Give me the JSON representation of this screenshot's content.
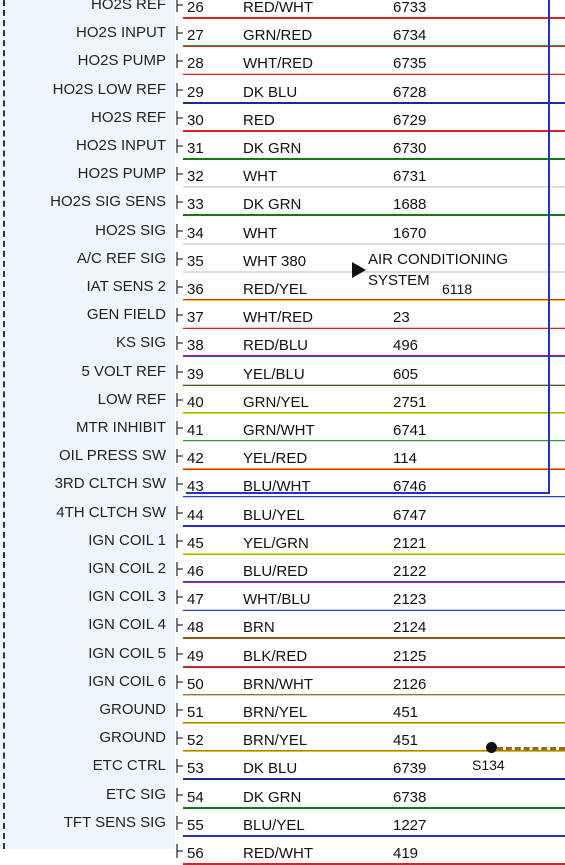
{
  "rows": [
    {
      "label": "HO2S REF",
      "pin": "26",
      "color": "RED/WHT",
      "circuit": "6733",
      "c1": "#e02020",
      "c2": "#e02020"
    },
    {
      "label": "HO2S INPUT",
      "pin": "27",
      "color": "GRN/RED",
      "circuit": "6734",
      "c1": "#2aa02a",
      "c2": "#e02020"
    },
    {
      "label": "HO2S PUMP",
      "pin": "28",
      "color": "WHT/RED",
      "circuit": "6735",
      "c1": "#f3c4c4",
      "c2": "#e02020"
    },
    {
      "label": "HO2S LOW REF",
      "pin": "29",
      "color": "DK BLU",
      "circuit": "6728",
      "c1": "#1b2b8f",
      "c2": "#1b2b8f"
    },
    {
      "label": "HO2S REF",
      "pin": "30",
      "color": "RED",
      "circuit": "6729",
      "c1": "#e02020",
      "c2": "#e02020"
    },
    {
      "label": "HO2S INPUT",
      "pin": "31",
      "color": "DK GRN",
      "circuit": "6730",
      "c1": "#137a13",
      "c2": "#137a13"
    },
    {
      "label": "HO2S PUMP",
      "pin": "32",
      "color": "WHT",
      "circuit": "6731",
      "c1": "#dddddd",
      "c2": "#dddddd"
    },
    {
      "label": "HO2S SIG SENS",
      "pin": "33",
      "color": "DK GRN",
      "circuit": "1688",
      "c1": "#137a13",
      "c2": "#137a13"
    },
    {
      "label": "HO2S SIG",
      "pin": "34",
      "color": "WHT",
      "circuit": "1670",
      "c1": "#dddddd",
      "c2": "#dddddd"
    },
    {
      "label": "A/C REF SIG",
      "pin": "35",
      "color": "WHT  380",
      "circuit": "",
      "c1": "#dddddd",
      "c2": "#dddddd"
    },
    {
      "label": "IAT SENS 2",
      "pin": "36",
      "color": "RED/YEL",
      "circuit": "",
      "c1": "#e02020",
      "c2": "#f2d100"
    },
    {
      "label": "GEN FIELD",
      "pin": "37",
      "color": "WHT/RED",
      "circuit": "23",
      "c1": "#f3c4c4",
      "c2": "#e02020"
    },
    {
      "label": "KS SIG",
      "pin": "38",
      "color": "RED/BLU",
      "circuit": "496",
      "c1": "#c01890",
      "c2": "#3040d0"
    },
    {
      "label": "5 VOLT REF",
      "pin": "39",
      "color": "YEL/BLU",
      "circuit": "605",
      "c1": "#f2d100",
      "c2": "#3040d0"
    },
    {
      "label": "LOW REF",
      "pin": "40",
      "color": "GRN/YEL",
      "circuit": "2751",
      "c1": "#7cc428",
      "c2": "#f2d100"
    },
    {
      "label": "MTR INHIBIT",
      "pin": "41",
      "color": "GRN/WHT",
      "circuit": "6741",
      "c1": "#2aa02a",
      "c2": "#cfe8cf"
    },
    {
      "label": "OIL PRESS SW",
      "pin": "42",
      "color": "YEL/RED",
      "circuit": "114",
      "c1": "#f2a000",
      "c2": "#e02020"
    },
    {
      "label": "3RD CLTCH SW",
      "pin": "43",
      "color": "BLU/WHT",
      "circuit": "6746",
      "c1": "#2a40d0",
      "c2": "#c8cff5"
    },
    {
      "label": "4TH CLTCH SW",
      "pin": "44",
      "color": "BLU/YEL",
      "circuit": "6747",
      "c1": "#1f2fd6",
      "c2": "#1f2fd6"
    },
    {
      "label": "IGN COIL 1",
      "pin": "45",
      "color": "YEL/GRN",
      "circuit": "2121",
      "c1": "#e4e400",
      "c2": "#7cc428"
    },
    {
      "label": "IGN COIL 2",
      "pin": "46",
      "color": "BLU/RED",
      "circuit": "2122",
      "c1": "#3040d0",
      "c2": "#c01890"
    },
    {
      "label": "IGN COIL 3",
      "pin": "47",
      "color": "WHT/BLU",
      "circuit": "2123",
      "c1": "#c8cff5",
      "c2": "#3040d0"
    },
    {
      "label": "IGN COIL 4",
      "pin": "48",
      "color": "BRN",
      "circuit": "2124",
      "c1": "#8b5a14",
      "c2": "#8b5a14"
    },
    {
      "label": "IGN COIL 5",
      "pin": "49",
      "color": "BLK/RED",
      "circuit": "2125",
      "c1": "#b03030",
      "c2": "#e02020"
    },
    {
      "label": "IGN COIL 6",
      "pin": "50",
      "color": "BRN/WHT",
      "circuit": "2126",
      "c1": "#a4703a",
      "c2": "#e0c8a8"
    },
    {
      "label": "GROUND",
      "pin": "51",
      "color": "BRN/YEL",
      "circuit": "451",
      "c1": "#a08020",
      "c2": "#e2c000"
    },
    {
      "label": "GROUND",
      "pin": "52",
      "color": "BRN/YEL",
      "circuit": "451",
      "c1": "#a08020",
      "c2": "#e2c000"
    },
    {
      "label": "ETC CTRL",
      "pin": "53",
      "color": "DK BLU",
      "circuit": "6739",
      "c1": "#1b2b8f",
      "c2": "#1b2b8f"
    },
    {
      "label": "ETC SIG",
      "pin": "54",
      "color": "DK GRN",
      "circuit": "6738",
      "c1": "#137a13",
      "c2": "#137a13"
    },
    {
      "label": "TFT SENS SIG",
      "pin": "55",
      "color": "BLU/YEL",
      "circuit": "1227",
      "c1": "#1f2fd6",
      "c2": "#1f2fd6"
    },
    {
      "label": "",
      "pin": "56",
      "color": "RED/WHT",
      "circuit": "419",
      "c1": "#e02020",
      "c2": "#e02020"
    }
  ],
  "ac": {
    "line1": "AIR CONDITIONING",
    "line2": "SYSTEM",
    "code": "6118"
  },
  "splice": {
    "label": "S134"
  }
}
